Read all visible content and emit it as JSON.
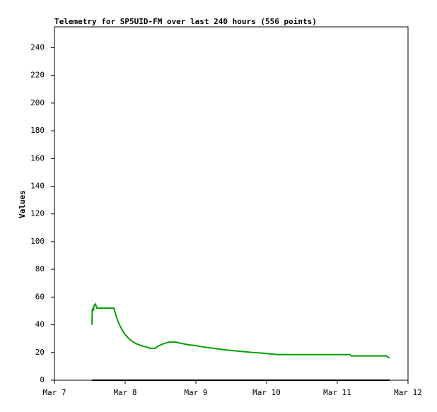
{
  "chart_data": {
    "type": "line",
    "title": "Telemetry for SP5UID-FM over last 240 hours (556 points)",
    "y_label": "Values",
    "xlim": [
      7,
      12
    ],
    "xticks": [
      {
        "value": 7,
        "label": "Mar 7"
      },
      {
        "value": 8,
        "label": "Mar 8"
      },
      {
        "value": 9,
        "label": "Mar 9"
      },
      {
        "value": 10,
        "label": "Mar 10"
      },
      {
        "value": 11,
        "label": "Mar 11"
      },
      {
        "value": 12,
        "label": "Mar 12"
      }
    ],
    "ylim": [
      0,
      255
    ],
    "yticks": [
      0,
      20,
      40,
      60,
      80,
      100,
      120,
      140,
      160,
      180,
      200,
      220,
      240
    ],
    "series": [
      {
        "color": "#00a000",
        "x": [
          7.53,
          7.535,
          7.54,
          7.55,
          7.56,
          7.58,
          7.6,
          7.84,
          7.88,
          7.92,
          7.96,
          8.0,
          8.05,
          8.1,
          8.15,
          8.2,
          8.25,
          8.3,
          8.35,
          8.42,
          8.48,
          8.55,
          8.62,
          8.72,
          8.8,
          8.9,
          9.0,
          9.1,
          9.25,
          9.4,
          9.6,
          9.8,
          9.95,
          10.05,
          10.15,
          10.5,
          11.0,
          11.18,
          11.2,
          11.7,
          11.72,
          11.74
        ],
        "values": [
          40,
          50,
          52,
          50,
          54,
          55,
          52,
          52,
          45,
          40,
          36,
          33,
          30,
          28,
          26.5,
          25.5,
          24.5,
          24,
          23,
          23,
          25,
          26.5,
          27.5,
          27.5,
          26.5,
          25.5,
          25,
          24,
          23,
          22,
          21,
          20,
          19.5,
          19,
          18.5,
          18.5,
          18.5,
          18.5,
          17.5,
          17.5,
          16.5,
          16
        ]
      },
      {
        "color": "#000000",
        "x": [
          7.53,
          11.74
        ],
        "values": [
          0,
          0
        ]
      }
    ]
  }
}
